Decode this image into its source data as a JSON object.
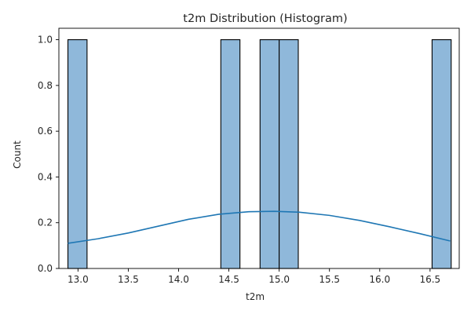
{
  "chart_data": {
    "type": "bar",
    "title": "t2m Distribution (Histogram)",
    "xlabel": "t2m",
    "ylabel": "Count",
    "xlim": [
      12.81,
      16.79
    ],
    "ylim": [
      0.0,
      1.05
    ],
    "xticks": [
      13.0,
      13.5,
      14.0,
      14.5,
      15.0,
      15.5,
      16.0,
      16.5
    ],
    "xtick_labels": [
      "13.0",
      "13.5",
      "14.0",
      "14.5",
      "15.0",
      "15.5",
      "16.0",
      "16.5"
    ],
    "yticks": [
      0.0,
      0.2,
      0.4,
      0.6,
      0.8,
      1.0
    ],
    "ytick_labels": [
      "0.0",
      "0.2",
      "0.4",
      "0.6",
      "0.8",
      "1.0"
    ],
    "grid": false,
    "bins": [
      {
        "x0": 12.9,
        "x1": 13.09,
        "count": 1
      },
      {
        "x0": 14.42,
        "x1": 14.61,
        "count": 1
      },
      {
        "x0": 14.81,
        "x1": 15.0,
        "count": 1
      },
      {
        "x0": 15.0,
        "x1": 15.19,
        "count": 1
      },
      {
        "x0": 16.52,
        "x1": 16.71,
        "count": 1
      }
    ],
    "kde": {
      "x": [
        12.9,
        13.2,
        13.5,
        13.8,
        14.1,
        14.4,
        14.7,
        14.95,
        15.2,
        15.5,
        15.8,
        16.1,
        16.4,
        16.7
      ],
      "y": [
        0.11,
        0.13,
        0.155,
        0.185,
        0.215,
        0.237,
        0.248,
        0.25,
        0.246,
        0.232,
        0.21,
        0.182,
        0.152,
        0.12
      ]
    },
    "colors": {
      "bar_fill": "#8fb8da",
      "bar_edge": "#000000",
      "kde_line": "#1f77b4"
    }
  }
}
